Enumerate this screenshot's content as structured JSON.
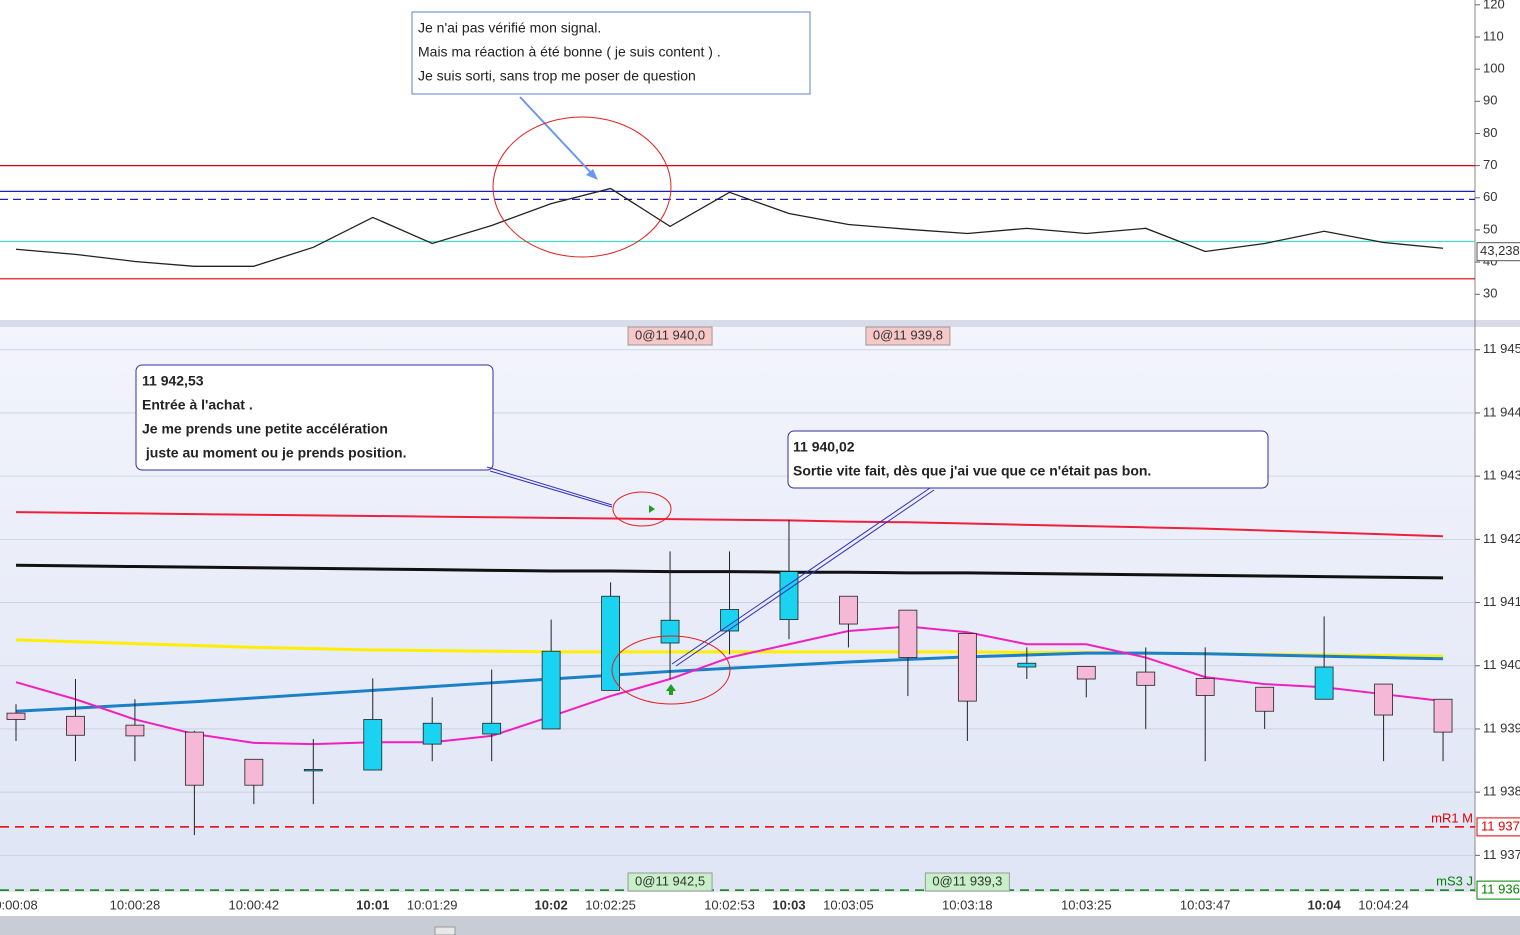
{
  "chart_data": [
    {
      "type": "line",
      "values": [
        44.0,
        42.4,
        40.2,
        38.7,
        38.7,
        44.6,
        53.9,
        45.8,
        51.4,
        58.2,
        62.9,
        51.1,
        61.7,
        55.1,
        51.7,
        50.2,
        48.9,
        50.5,
        48.9,
        50.5,
        43.3,
        45.8,
        49.6,
        46.1,
        44.3
      ],
      "color": "#222222",
      "ylim": [
        22,
        121.5
      ],
      "yticks": [
        30,
        40,
        50,
        60,
        70,
        80,
        90,
        100,
        110,
        120
      ],
      "levels": [
        {
          "value": 70,
          "color": "#e00000",
          "dash": false
        },
        {
          "value": 34.8,
          "color": "#e00000",
          "dash": false
        },
        {
          "value": 62,
          "color": "#2020b0",
          "dash": false
        },
        {
          "value": 59.5,
          "color": "#2020b0",
          "dash": true
        },
        {
          "value": 46.4,
          "color": "#40e0c0",
          "dash": false
        }
      ],
      "current_value": {
        "value": 43.238,
        "label": "43,238"
      },
      "annotation": [
        "Je n'ai pas vérifié mon signal.",
        "Mais ma réaction à été bonne ( je suis content ) .",
        "Je suis sorti, sans trop me poser de question"
      ]
    },
    {
      "type": "candlestick",
      "categories": [
        "0:00:08",
        null,
        "10:00:28",
        null,
        "10:00:42",
        null,
        "10:01",
        "10:01:29",
        null,
        "10:02",
        "10:02:25",
        null,
        "10:02:53",
        "10:03",
        "10:03:05",
        null,
        "10:03:18",
        null,
        "10:03:25",
        null,
        "10:03:47",
        null,
        "10:04",
        "10:04:24",
        null
      ],
      "open": [
        11939.25,
        11939.2,
        11939.06,
        11938.95,
        11938.52,
        11938.35,
        11938.35,
        11938.76,
        11938.92,
        11939.0,
        11939.61,
        11940.36,
        11940.55,
        11940.73,
        11941.1,
        11940.88,
        11940.51,
        11939.98,
        11939.99,
        11939.9,
        11939.8,
        11939.66,
        11939.47,
        11939.71,
        11939.47
      ],
      "high": [
        11939.39,
        11939.79,
        11939.47,
        11938.97,
        11938.52,
        11938.84,
        11939.8,
        11939.5,
        11939.94,
        11940.73,
        11941.32,
        11941.81,
        11941.81,
        11942.31,
        11941.1,
        11940.88,
        11940.51,
        11940.29,
        11939.99,
        11940.29,
        11940.29,
        11939.66,
        11940.78,
        11939.71,
        11939.47
      ],
      "low": [
        11938.81,
        11938.49,
        11938.49,
        11937.32,
        11937.81,
        11937.81,
        11938.35,
        11938.49,
        11938.49,
        11939.0,
        11939.61,
        11939.79,
        11940.18,
        11940.42,
        11940.29,
        11939.52,
        11938.81,
        11939.79,
        11939.5,
        11939.0,
        11938.49,
        11939.0,
        11939.47,
        11938.49,
        11938.49
      ],
      "close": [
        11939.15,
        11938.9,
        11938.89,
        11938.11,
        11938.11,
        11938.36,
        11939.15,
        11939.09,
        11939.09,
        11940.23,
        11941.1,
        11940.72,
        11940.89,
        11941.49,
        11940.66,
        11940.13,
        11939.44,
        11940.04,
        11939.79,
        11939.69,
        11939.53,
        11939.28,
        11939.98,
        11939.22,
        11938.95
      ],
      "up_color": "#19d3f0",
      "down_color": "#f5b8d6",
      "ylim": [
        11936.42,
        11945.36
      ],
      "yticks": [
        {
          "value": 11937,
          "label": "11 937"
        },
        {
          "value": 11938,
          "label": "11 938"
        },
        {
          "value": 11939,
          "label": "11 939"
        },
        {
          "value": 11940,
          "label": "11 940"
        },
        {
          "value": 11941,
          "label": "11 941"
        },
        {
          "value": 11942,
          "label": "11 942"
        },
        {
          "value": 11943,
          "label": "11 943"
        },
        {
          "value": 11944,
          "label": "11 944"
        },
        {
          "value": 11945,
          "label": "11 945"
        }
      ],
      "overlays": [
        {
          "color": "#f0203c",
          "width": 2,
          "values": [
            11942.43,
            11942.42,
            11942.41,
            11942.4,
            11942.39,
            11942.38,
            11942.37,
            11942.36,
            11942.35,
            11942.34,
            11942.33,
            11942.32,
            11942.31,
            11942.3,
            11942.28,
            11942.27,
            11942.25,
            11942.23,
            11942.21,
            11942.19,
            11942.17,
            11942.14,
            11942.11,
            11942.08,
            11942.05
          ]
        },
        {
          "color": "#111111",
          "width": 3,
          "values": [
            11941.59,
            11941.58,
            11941.57,
            11941.56,
            11941.55,
            11941.54,
            11941.53,
            11941.52,
            11941.51,
            11941.5,
            11941.5,
            11941.49,
            11941.49,
            11941.48,
            11941.48,
            11941.47,
            11941.47,
            11941.46,
            11941.45,
            11941.44,
            11941.43,
            11941.42,
            11941.41,
            11941.4,
            11941.39
          ]
        },
        {
          "color": "#ffee00",
          "width": 3,
          "values": [
            11940.41,
            11940.38,
            11940.35,
            11940.32,
            11940.29,
            11940.27,
            11940.25,
            11940.24,
            11940.23,
            11940.22,
            11940.22,
            11940.22,
            11940.22,
            11940.22,
            11940.22,
            11940.22,
            11940.22,
            11940.21,
            11940.21,
            11940.2,
            11940.19,
            11940.18,
            11940.17,
            11940.16,
            11940.15
          ]
        },
        {
          "color": "#1a80c8",
          "width": 3,
          "values": [
            11939.28,
            11939.33,
            11939.38,
            11939.43,
            11939.49,
            11939.55,
            11939.61,
            11939.67,
            11939.73,
            11939.79,
            11939.85,
            11939.91,
            11939.96,
            11940.01,
            11940.06,
            11940.1,
            11940.14,
            11940.17,
            11940.2,
            11940.2,
            11940.19,
            11940.17,
            11940.15,
            11940.13,
            11940.11
          ]
        },
        {
          "color": "#f020c0",
          "width": 2,
          "values": [
            11939.74,
            11939.47,
            11939.15,
            11938.92,
            11938.78,
            11938.76,
            11938.79,
            11938.79,
            11938.89,
            11939.2,
            11939.52,
            11939.79,
            11940.13,
            11940.34,
            11940.55,
            11940.62,
            11940.53,
            11940.34,
            11940.34,
            11940.13,
            11939.82,
            11939.71,
            11939.66,
            11939.55,
            11939.44
          ]
        }
      ],
      "levels": [
        {
          "value": 11937.45,
          "color": "#e00000",
          "name": "mR1 M",
          "price_label": "11 937"
        },
        {
          "value": 11936.45,
          "color": "#008000",
          "name": "mS3 J",
          "price_label": "11 936"
        }
      ],
      "orders": [
        {
          "label": "0@11 940,0",
          "index": 11,
          "position": "top",
          "color": "#f8c8c8"
        },
        {
          "label": "0@11 939,8",
          "index": 15,
          "position": "top",
          "color": "#f8c8c8"
        },
        {
          "label": "0@11 942,5",
          "index": 11,
          "position": "bottom",
          "color": "#c8f0c8"
        },
        {
          "label": "0@11 939,3",
          "index": 16,
          "position": "bottom",
          "color": "#c8f0c8"
        }
      ],
      "annotations": [
        [
          "11 942,53",
          "Entrée à l'achat .",
          "Je me prends une petite accélération",
          " juste au moment ou je prends position."
        ],
        [
          "11 940,02",
          "Sortie vite fait, dès que j'ai vue que ce n'était pas bon."
        ]
      ]
    }
  ]
}
